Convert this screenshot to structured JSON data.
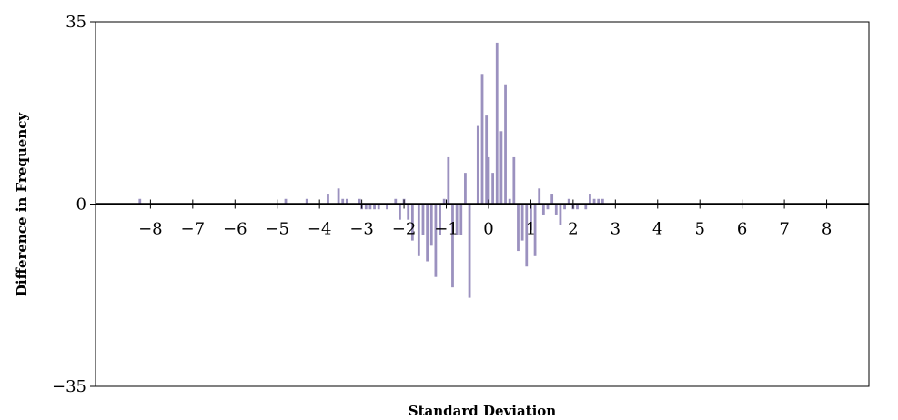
{
  "chart_data": {
    "type": "bar",
    "title": "",
    "xlabel": "Standard Deviation",
    "ylabel": "Difference in Frequency",
    "xlim": [
      -9.3,
      9.0
    ],
    "ylim": [
      -35,
      35
    ],
    "x_ticks": [
      -8,
      -7,
      -6,
      -5,
      -4,
      -3,
      -2,
      -1,
      0,
      1,
      2,
      3,
      4,
      5,
      6,
      7,
      8
    ],
    "x_tick_labels": [
      "−8",
      "−7",
      "−6",
      "−5",
      "−4",
      "−3",
      "−2",
      "−1",
      "0",
      "1",
      "2",
      "3",
      "4",
      "5",
      "6",
      "7",
      "8"
    ],
    "y_ticks": [
      35,
      0,
      -35
    ],
    "y_tick_labels": [
      "35",
      "0",
      "−35"
    ],
    "grid": false,
    "legend": "none",
    "bar_color": "#9b91bf",
    "bar_width": 0.06,
    "bars": {
      "x": [
        -8.25,
        -4.8,
        -4.3,
        -3.8,
        -3.55,
        -3.45,
        -3.35,
        -3.05,
        -3.0,
        -2.9,
        -2.8,
        -2.7,
        -2.6,
        -2.4,
        -2.2,
        -2.1,
        -2.0,
        -1.9,
        -1.8,
        -1.65,
        -1.55,
        -1.45,
        -1.35,
        -1.25,
        -1.15,
        -1.05,
        -0.95,
        -0.85,
        -0.75,
        -0.65,
        -0.55,
        -0.45,
        -0.35,
        -0.25,
        -0.15,
        -0.05,
        0.0,
        0.1,
        0.2,
        0.3,
        0.4,
        0.5,
        0.6,
        0.7,
        0.8,
        0.9,
        1.0,
        1.1,
        1.2,
        1.3,
        1.4,
        1.5,
        1.6,
        1.7,
        1.8,
        1.9,
        2.0,
        2.1,
        2.2,
        2.3,
        2.4,
        2.5,
        2.6,
        2.7,
        2.8,
        3.0,
        3.3,
        3.4,
        3.5,
        3.6,
        3.7
      ],
      "y": [
        1,
        1,
        1,
        2,
        3,
        1,
        1,
        1,
        -1,
        -1,
        -1,
        -1,
        -1,
        -1,
        1,
        -3,
        1,
        -3,
        -7,
        -10,
        -6,
        -11,
        -8,
        -14,
        -6,
        1,
        9,
        -16,
        -6,
        -6,
        6,
        -18,
        0,
        15,
        25,
        17,
        9,
        6,
        31,
        14,
        23,
        1,
        9,
        -9,
        -7,
        -12,
        -5,
        -10,
        3,
        -2,
        -1,
        2,
        -2,
        -4,
        -1,
        1,
        -1,
        -1,
        0,
        -1,
        2,
        1,
        1,
        1,
        0,
        0,
        0,
        0,
        0,
        0,
        0
      ]
    }
  }
}
